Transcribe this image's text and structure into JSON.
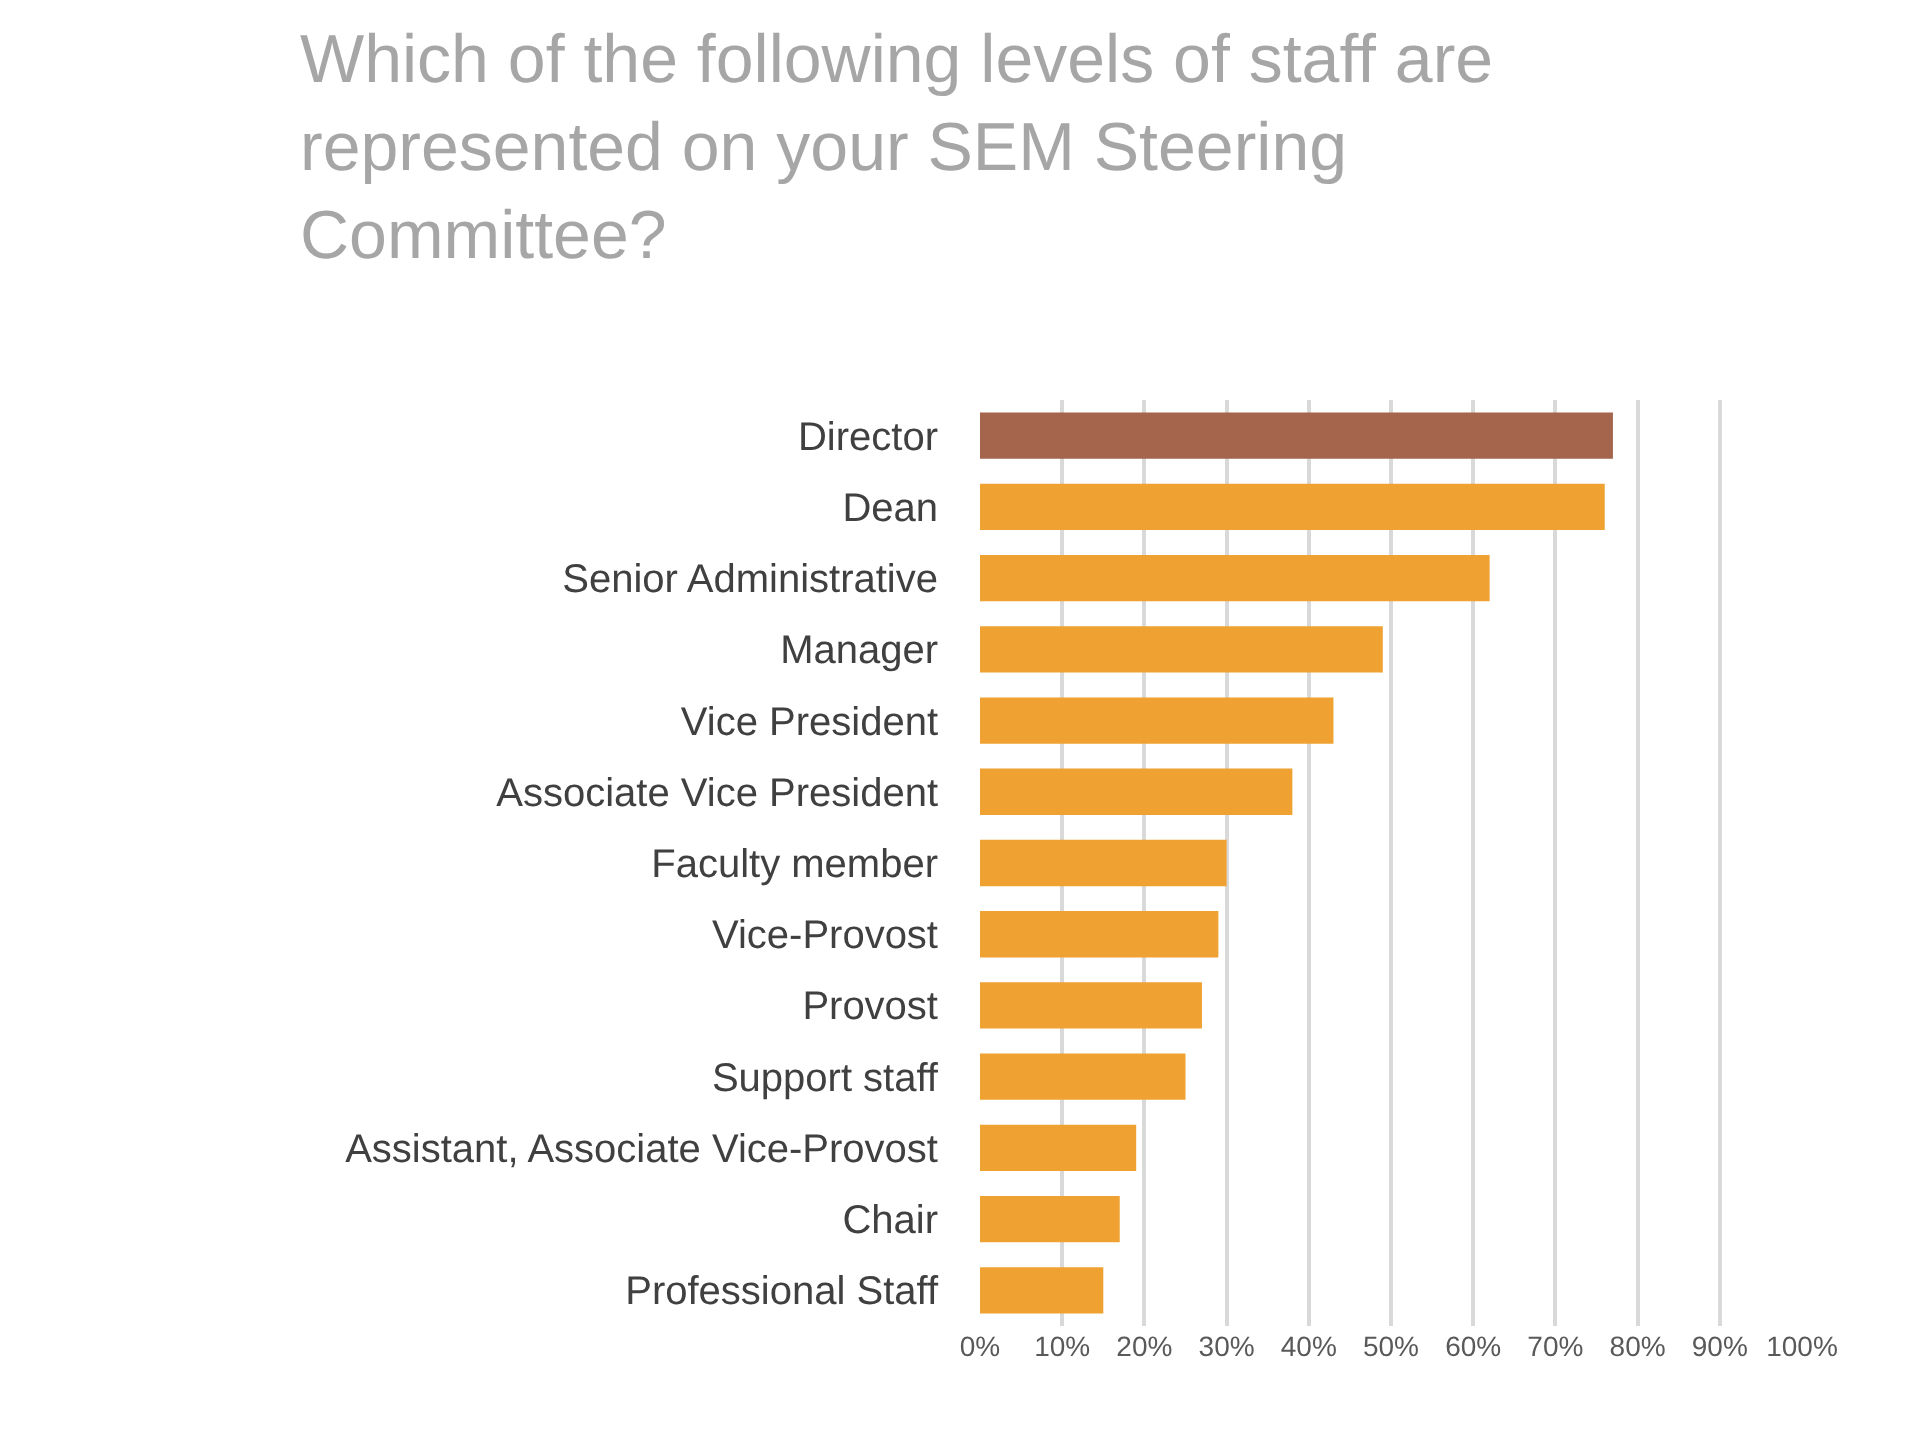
{
  "chart_data": {
    "type": "bar",
    "orientation": "horizontal",
    "title": "Which of the following levels of staff are represented on your SEM Steering Committee?",
    "categories": [
      "Director",
      "Dean",
      "Senior Administrative",
      "Manager",
      "Vice President",
      "Associate Vice President",
      "Faculty member",
      "Vice-Provost",
      "Provost",
      "Support staff",
      "Assistant, Associate Vice-Provost",
      "Chair",
      "Professional Staff"
    ],
    "values": [
      77,
      76,
      62,
      49,
      43,
      38,
      30,
      29,
      27,
      25,
      19,
      17,
      15
    ],
    "colors": [
      "#a5654c",
      "#efa232",
      "#efa232",
      "#efa232",
      "#efa232",
      "#efa232",
      "#efa232",
      "#efa232",
      "#efa232",
      "#efa232",
      "#efa232",
      "#efa232",
      "#efa232"
    ],
    "xlim": [
      0,
      100
    ],
    "xticks": [
      {
        "value": 0,
        "label": "0%"
      },
      {
        "value": 10,
        "label": "10%"
      },
      {
        "value": 20,
        "label": "20%"
      },
      {
        "value": 30,
        "label": "30%"
      },
      {
        "value": 40,
        "label": "40%"
      },
      {
        "value": 50,
        "label": "50%"
      },
      {
        "value": 60,
        "label": "60%"
      },
      {
        "value": 70,
        "label": "70%"
      },
      {
        "value": 80,
        "label": "80%"
      },
      {
        "value": 90,
        "label": "90%"
      },
      {
        "value": 100,
        "label": "100%"
      }
    ],
    "grid": "x"
  }
}
